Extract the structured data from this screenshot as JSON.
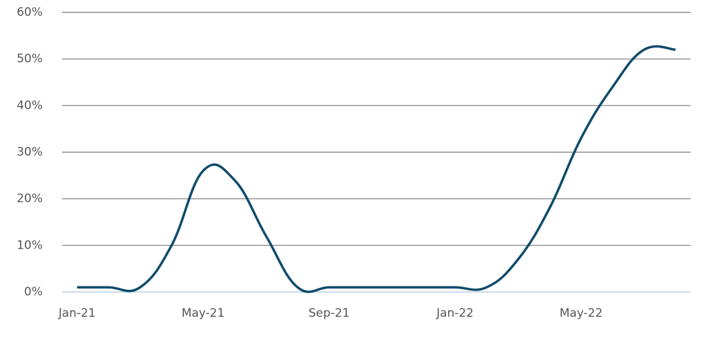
{
  "chart_data": {
    "type": "line",
    "categories": [
      "Jan-21",
      null,
      null,
      null,
      "May-21",
      null,
      null,
      null,
      "Sep-21",
      null,
      null,
      null,
      "Jan-22",
      null,
      null,
      null,
      "May-22",
      null,
      null,
      null
    ],
    "series": [
      {
        "color": "#0f4b6b",
        "values": [
          1,
          1,
          1,
          10,
          26,
          24,
          12,
          1,
          1,
          1,
          1,
          1,
          1,
          1,
          7,
          18,
          33,
          44,
          52,
          52
        ]
      }
    ],
    "ylim": [
      0,
      60
    ],
    "yticks": [
      {
        "value": 0,
        "label": "0%"
      },
      {
        "value": 10,
        "label": "10%"
      },
      {
        "value": 20,
        "label": "20%"
      },
      {
        "value": 30,
        "label": "30%"
      },
      {
        "value": 40,
        "label": "40%"
      },
      {
        "value": 50,
        "label": "50%"
      },
      {
        "value": 60,
        "label": "60%"
      }
    ],
    "grid": true
  }
}
